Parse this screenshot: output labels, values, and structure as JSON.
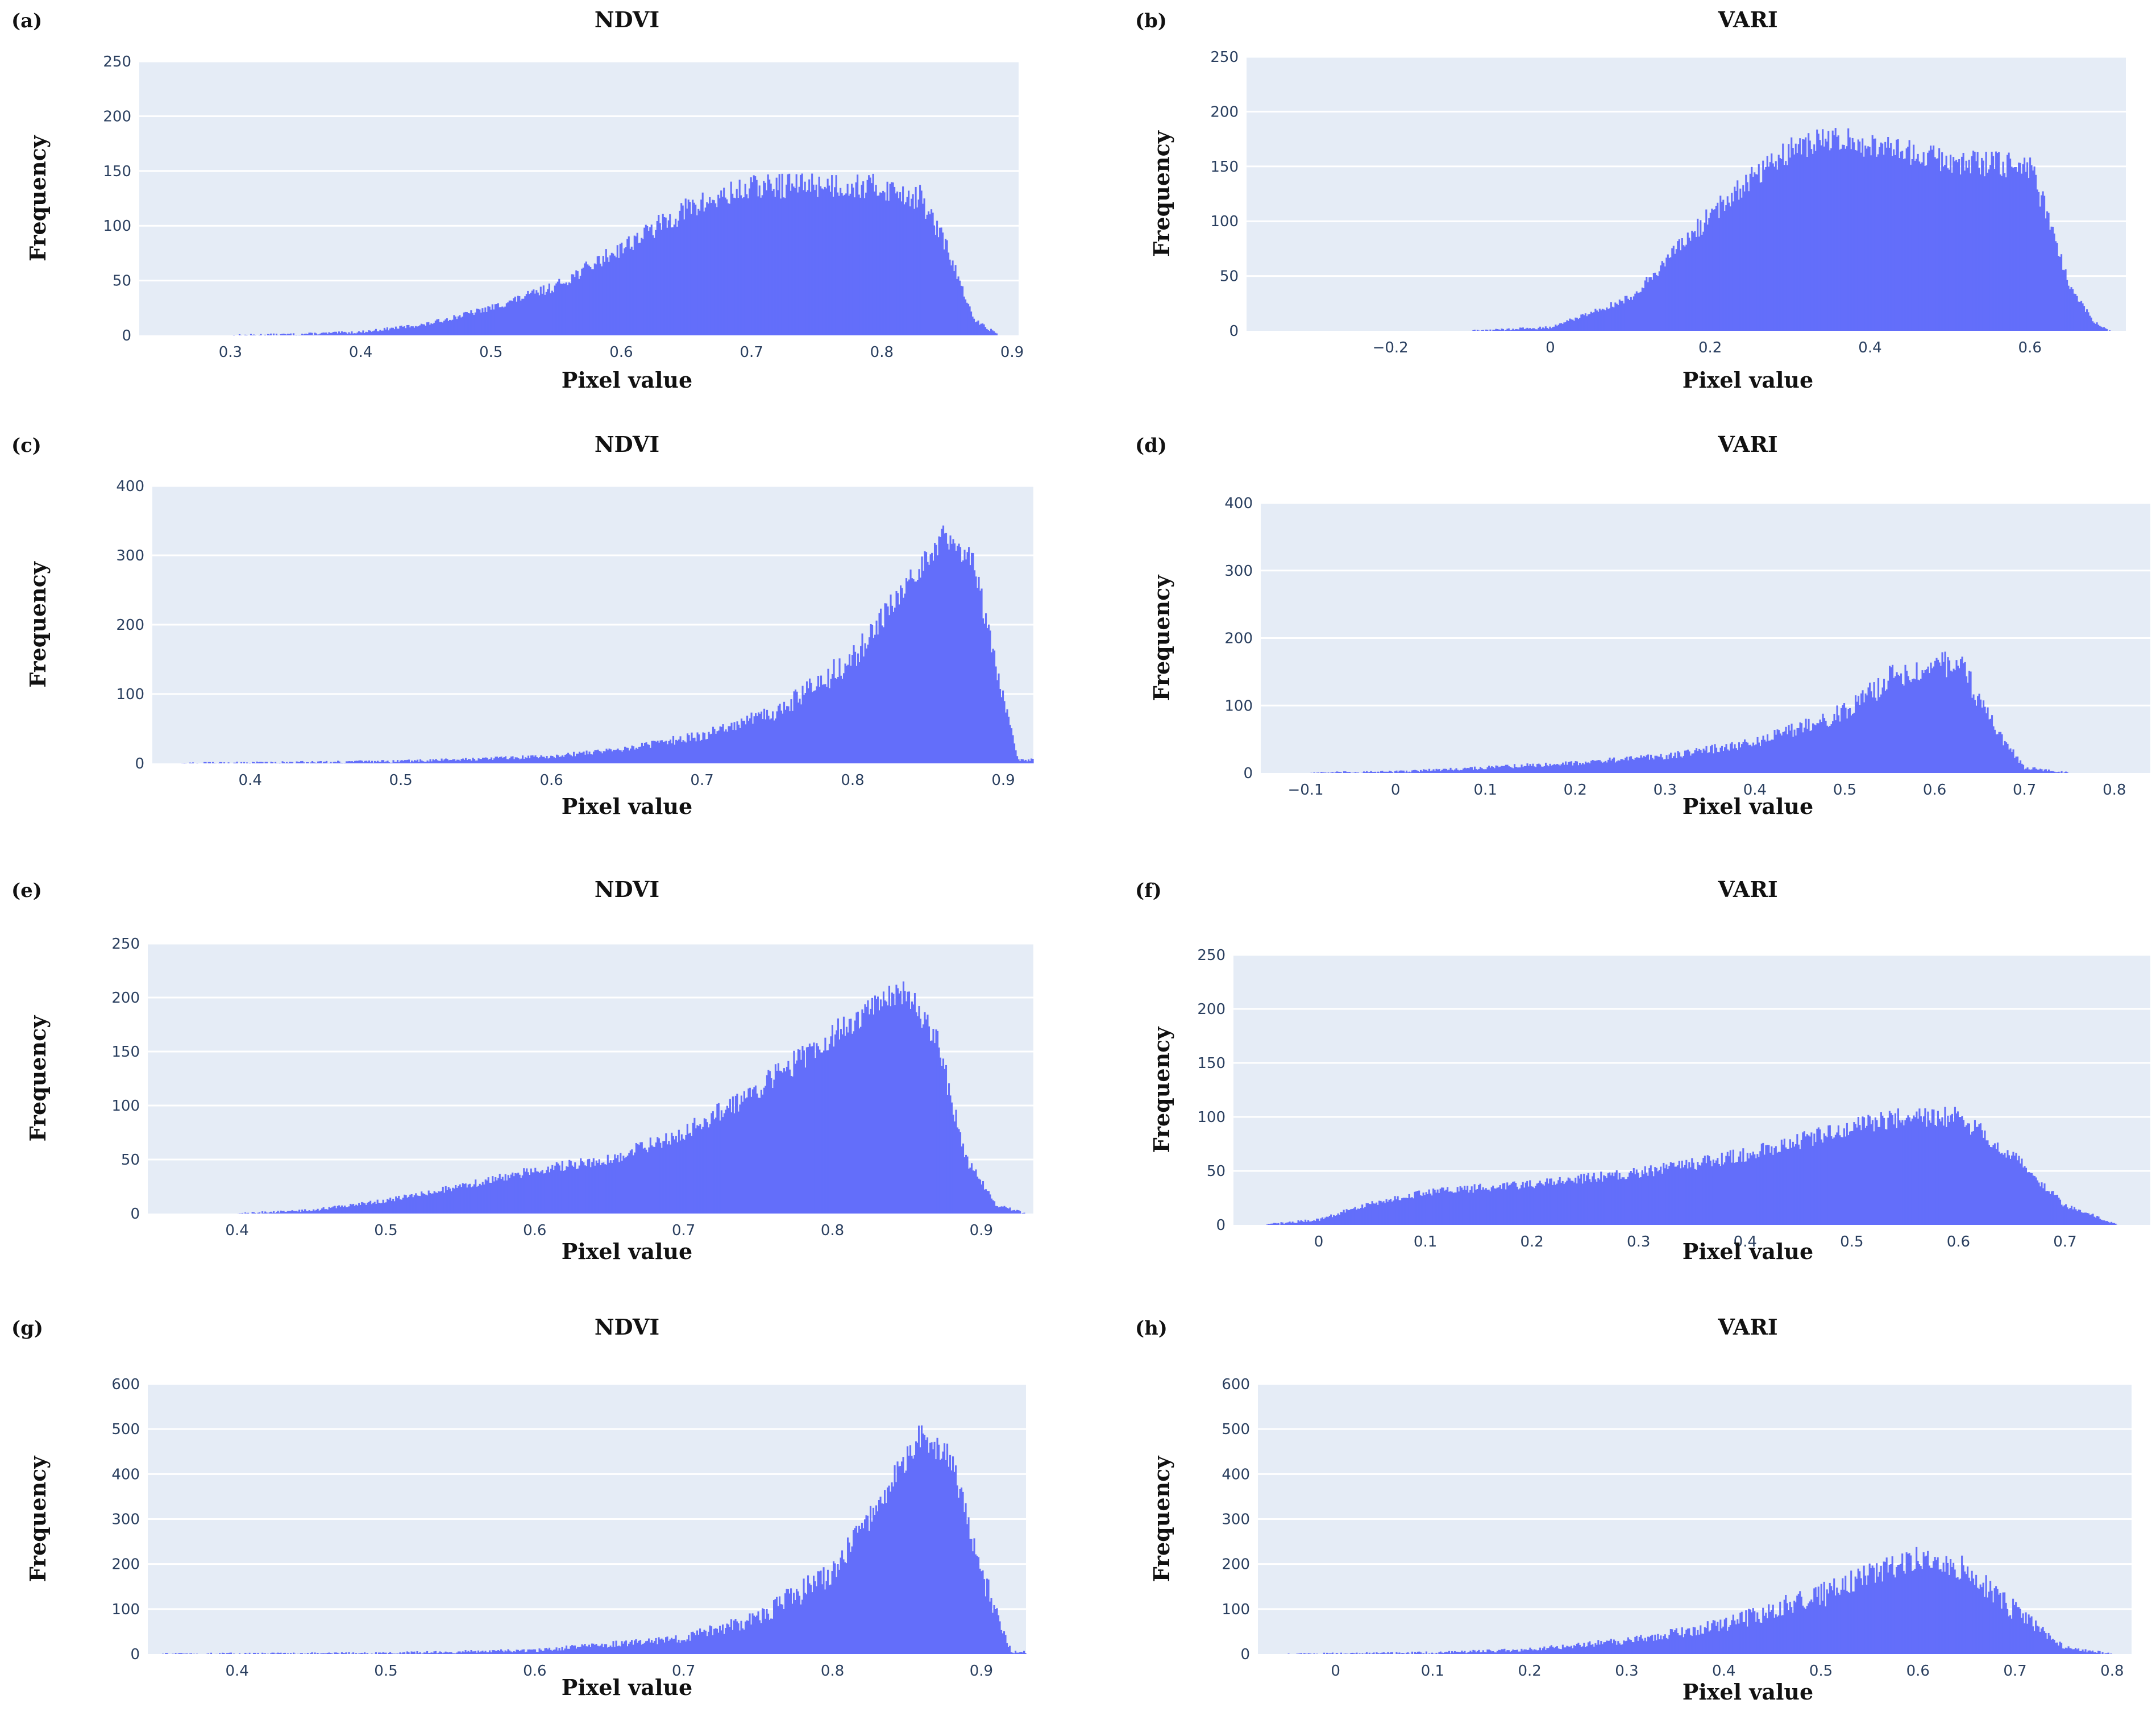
{
  "figure": {
    "bar_color": "#636efa",
    "plot_background": "#e5ecf6"
  },
  "chart_data": [
    {
      "id": "a",
      "panel_label": "(a)",
      "type": "bar",
      "title": "NDVI",
      "xlabel": "Pixel value",
      "ylabel": "Frequency",
      "xlim": [
        0.23,
        0.905
      ],
      "ylim": [
        0,
        250
      ],
      "xticks": [
        0.3,
        0.4,
        0.5,
        0.6,
        0.7,
        0.8,
        0.9
      ],
      "xtick_labels": [
        "0.3",
        "0.4",
        "0.5",
        "0.6",
        "0.7",
        "0.8",
        "0.9"
      ],
      "yticks": [
        0,
        50,
        100,
        150,
        200,
        250
      ],
      "ytick_labels": [
        "0",
        "50",
        "100",
        "150",
        "200",
        "250"
      ],
      "series": [
        {
          "name": "NDVI",
          "x": [
            0.3,
            0.35,
            0.4,
            0.45,
            0.5,
            0.55,
            0.6,
            0.65,
            0.7,
            0.75,
            0.8,
            0.83,
            0.85,
            0.87,
            0.89
          ],
          "y": [
            0,
            1,
            3,
            10,
            25,
            45,
            80,
            115,
            135,
            138,
            135,
            125,
            80,
            15,
            0
          ]
        }
      ]
    },
    {
      "id": "b",
      "panel_label": "(b)",
      "type": "bar",
      "title": "VARI",
      "xlabel": "Pixel value",
      "ylabel": "Frequency",
      "xlim": [
        -0.38,
        0.72
      ],
      "ylim": [
        0,
        250
      ],
      "xticks": [
        -0.2,
        0,
        0.2,
        0.4,
        0.6
      ],
      "xtick_labels": [
        "−0.2",
        "0",
        "0.2",
        "0.4",
        "0.6"
      ],
      "yticks": [
        0,
        50,
        100,
        150,
        200,
        250
      ],
      "ytick_labels": [
        "0",
        "50",
        "100",
        "150",
        "200",
        "250"
      ],
      "series": [
        {
          "name": "VARI",
          "x": [
            -0.1,
            0,
            0.1,
            0.2,
            0.25,
            0.3,
            0.35,
            0.4,
            0.5,
            0.6,
            0.62,
            0.65,
            0.68,
            0.7
          ],
          "y": [
            0,
            3,
            30,
            105,
            140,
            165,
            175,
            170,
            155,
            150,
            110,
            40,
            8,
            0
          ]
        }
      ]
    },
    {
      "id": "c",
      "panel_label": "(c)",
      "type": "bar",
      "title": "NDVI",
      "xlabel": "Pixel value",
      "ylabel": "Frequency",
      "xlim": [
        0.335,
        0.92
      ],
      "ylim": [
        0,
        400
      ],
      "xticks": [
        0.4,
        0.5,
        0.6,
        0.7,
        0.8,
        0.9
      ],
      "xtick_labels": [
        "0.4",
        "0.5",
        "0.6",
        "0.7",
        "0.8",
        "0.9"
      ],
      "yticks": [
        0,
        100,
        200,
        300,
        400
      ],
      "ytick_labels": [
        "0",
        "100",
        "200",
        "300",
        "400"
      ],
      "series": [
        {
          "name": "NDVI",
          "x": [
            0.35,
            0.5,
            0.6,
            0.65,
            0.7,
            0.75,
            0.8,
            0.83,
            0.86,
            0.88,
            0.9,
            0.91
          ],
          "y": [
            0,
            3,
            10,
            22,
            40,
            75,
            150,
            240,
            330,
            290,
            100,
            5
          ]
        }
      ]
    },
    {
      "id": "d",
      "panel_label": "(d)",
      "type": "bar",
      "title": "VARI",
      "xlabel": "Pixel value",
      "ylabel": "Frequency",
      "xlim": [
        -0.15,
        0.84
      ],
      "ylim": [
        0,
        400
      ],
      "xticks": [
        -0.1,
        0,
        0.1,
        0.2,
        0.3,
        0.4,
        0.5,
        0.6,
        0.7,
        0.8
      ],
      "xtick_labels": [
        "−0.1",
        "0",
        "0.1",
        "0.2",
        "0.3",
        "0.4",
        "0.5",
        "0.6",
        "0.7",
        "0.8"
      ],
      "yticks": [
        0,
        100,
        200,
        300,
        400
      ],
      "ytick_labels": [
        "0",
        "100",
        "200",
        "300",
        "400"
      ],
      "series": [
        {
          "name": "VARI",
          "x": [
            -0.1,
            0,
            0.1,
            0.2,
            0.3,
            0.4,
            0.5,
            0.55,
            0.6,
            0.63,
            0.67,
            0.7,
            0.75
          ],
          "y": [
            0,
            2,
            8,
            15,
            25,
            45,
            90,
            140,
            165,
            155,
            60,
            8,
            0
          ]
        }
      ]
    },
    {
      "id": "e",
      "panel_label": "(e)",
      "type": "bar",
      "title": "NDVI",
      "xlabel": "Pixel value",
      "ylabel": "Frequency",
      "xlim": [
        0.34,
        0.935
      ],
      "ylim": [
        0,
        250
      ],
      "xticks": [
        0.4,
        0.5,
        0.6,
        0.7,
        0.8,
        0.9
      ],
      "xtick_labels": [
        "0.4",
        "0.5",
        "0.6",
        "0.7",
        "0.8",
        "0.9"
      ],
      "yticks": [
        0,
        50,
        100,
        150,
        200,
        250
      ],
      "ytick_labels": [
        "0",
        "50",
        "100",
        "150",
        "200",
        "250"
      ],
      "series": [
        {
          "name": "NDVI",
          "x": [
            0.4,
            0.45,
            0.5,
            0.55,
            0.6,
            0.65,
            0.7,
            0.75,
            0.8,
            0.83,
            0.85,
            0.87,
            0.89,
            0.91,
            0.93
          ],
          "y": [
            0,
            3,
            12,
            25,
            40,
            50,
            75,
            115,
            165,
            195,
            205,
            160,
            50,
            8,
            0
          ]
        }
      ]
    },
    {
      "id": "f",
      "panel_label": "(f)",
      "type": "bar",
      "title": "VARI",
      "xlabel": "Pixel value",
      "ylabel": "Frequency",
      "xlim": [
        -0.08,
        0.78
      ],
      "ylim": [
        0,
        250
      ],
      "xticks": [
        0,
        0.1,
        0.2,
        0.3,
        0.4,
        0.5,
        0.6,
        0.7
      ],
      "xtick_labels": [
        "0",
        "0.1",
        "0.2",
        "0.3",
        "0.4",
        "0.5",
        "0.6",
        "0.7"
      ],
      "yticks": [
        0,
        50,
        100,
        150,
        200,
        250
      ],
      "ytick_labels": [
        "0",
        "50",
        "100",
        "150",
        "200",
        "250"
      ],
      "series": [
        {
          "name": "VARI",
          "x": [
            -0.05,
            0,
            0.05,
            0.1,
            0.2,
            0.3,
            0.4,
            0.5,
            0.55,
            0.6,
            0.65,
            0.7,
            0.75
          ],
          "y": [
            0,
            5,
            20,
            30,
            38,
            48,
            65,
            90,
            100,
            100,
            65,
            18,
            0
          ]
        }
      ]
    },
    {
      "id": "g",
      "panel_label": "(g)",
      "type": "bar",
      "title": "NDVI",
      "xlabel": "Pixel value",
      "ylabel": "Frequency",
      "xlim": [
        0.34,
        0.93
      ],
      "ylim": [
        0,
        600
      ],
      "xticks": [
        0.4,
        0.5,
        0.6,
        0.7,
        0.8,
        0.9
      ],
      "xtick_labels": [
        "0.4",
        "0.5",
        "0.6",
        "0.7",
        "0.8",
        "0.9"
      ],
      "yticks": [
        0,
        100,
        200,
        300,
        400,
        500,
        600
      ],
      "ytick_labels": [
        "0",
        "100",
        "200",
        "300",
        "400",
        "500",
        "600"
      ],
      "series": [
        {
          "name": "NDVI",
          "x": [
            0.35,
            0.5,
            0.6,
            0.7,
            0.75,
            0.8,
            0.83,
            0.86,
            0.88,
            0.9,
            0.92
          ],
          "y": [
            0,
            2,
            8,
            35,
            80,
            180,
            330,
            490,
            430,
            180,
            5
          ]
        }
      ]
    },
    {
      "id": "h",
      "panel_label": "(h)",
      "type": "bar",
      "title": "VARI",
      "xlabel": "Pixel value",
      "ylabel": "Frequency",
      "xlim": [
        -0.08,
        0.82
      ],
      "ylim": [
        0,
        600
      ],
      "xticks": [
        0,
        0.1,
        0.2,
        0.3,
        0.4,
        0.5,
        0.6,
        0.7,
        0.8
      ],
      "xtick_labels": [
        "0",
        "0.1",
        "0.2",
        "0.3",
        "0.4",
        "0.5",
        "0.6",
        "0.7",
        "0.8"
      ],
      "yticks": [
        0,
        100,
        200,
        300,
        400,
        500,
        600
      ],
      "ytick_labels": [
        "0",
        "100",
        "200",
        "300",
        "400",
        "500",
        "600"
      ],
      "series": [
        {
          "name": "VARI",
          "x": [
            -0.05,
            0.1,
            0.2,
            0.3,
            0.4,
            0.5,
            0.55,
            0.6,
            0.65,
            0.7,
            0.75,
            0.8
          ],
          "y": [
            0,
            3,
            10,
            30,
            65,
            130,
            180,
            210,
            190,
            95,
            15,
            0
          ]
        }
      ]
    }
  ]
}
